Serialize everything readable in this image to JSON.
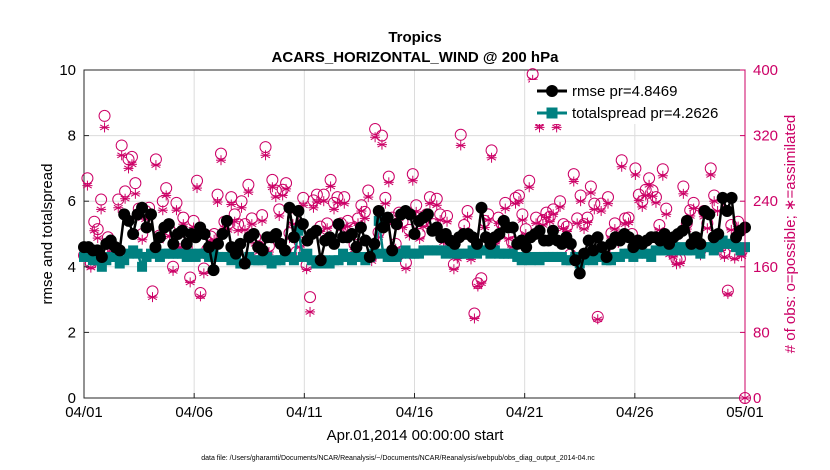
{
  "chart_data": {
    "type": "line",
    "title": "Tropics",
    "subtitle": "ACARS_HORIZONTAL_WIND @ 200 hPa",
    "xlabel": "Apr.01,2014 00:00:00 start",
    "ylabel_left": "rmse and totalspread",
    "ylabel_right": "# of obs: o=possible; ∗=assimilated",
    "footer": "data file: /Users/gharamti/Documents/NCAR/Reanalysis/~/Documents/NCAR/Reanalysis/webpub/obs_diag_output_2014-04.nc",
    "x_ticks": [
      "04/01",
      "04/06",
      "04/11",
      "04/16",
      "04/21",
      "04/26",
      "05/01"
    ],
    "x_tick_days": [
      0,
      5,
      10,
      15,
      20,
      25,
      30
    ],
    "xlim_days": [
      0,
      30
    ],
    "ylim_left": [
      0,
      10
    ],
    "y_ticks_left": [
      "0",
      "2",
      "4",
      "6",
      "8",
      "10"
    ],
    "ylim_right": [
      0,
      400
    ],
    "y_ticks_right": [
      "0",
      "80",
      "160",
      "240",
      "320",
      "400"
    ],
    "grid": true,
    "legend_position": "top-right",
    "colors": {
      "rmse": "#000000",
      "totalspread": "#008080",
      "obs": "#cc0066"
    },
    "series": [
      {
        "name": "rmse pr=4.8469",
        "axis": "left",
        "marker": "circle",
        "values": [
          4.6,
          4.6,
          4.5,
          4.5,
          4.3,
          4.7,
          4.8,
          4.6,
          4.5,
          5.6,
          5.4,
          5.0,
          5.6,
          5.8,
          5.2,
          5.6,
          4.6,
          4.9,
          5.2,
          5.3,
          4.7,
          5.0,
          5.1,
          4.7,
          5.0,
          4.9,
          5.2,
          5.0,
          4.6,
          3.9,
          4.7,
          5.0,
          5.4,
          4.6,
          4.4,
          4.7,
          4.1,
          4.9,
          5.0,
          4.6,
          4.5,
          4.9,
          4.9,
          5.0,
          4.7,
          4.5,
          5.8,
          4.9,
          5.7,
          5.3,
          4.8,
          5.0,
          5.1,
          4.2,
          4.8,
          4.9,
          4.7,
          5.3,
          4.9,
          4.9,
          5.0,
          4.6,
          5.2,
          4.8,
          4.3,
          4.7,
          5.7,
          5.2,
          5.5,
          4.5,
          5.3,
          5.6,
          5.7,
          5.6,
          5.0,
          5.4,
          5.5,
          5.6,
          5.1,
          5.2,
          4.9,
          5.0,
          4.8,
          4.7,
          4.9,
          5.0,
          5.0,
          4.9,
          4.7,
          5.8,
          4.9,
          4.7,
          4.9,
          5.0,
          5.4,
          5.2,
          5.2,
          4.7,
          4.8,
          4.6,
          4.9,
          5.0,
          5.1,
          4.8,
          4.8,
          5.1,
          4.8,
          4.7,
          4.9,
          4.7,
          4.2,
          3.8,
          4.4,
          4.8,
          4.5,
          4.9,
          4.6,
          4.3,
          4.7,
          4.9,
          4.8,
          5.0,
          4.9,
          4.6,
          4.8,
          4.7,
          4.8,
          4.9,
          4.9,
          4.8,
          5.0,
          4.7,
          4.9,
          5.0,
          5.1,
          5.4,
          4.7,
          4.9,
          4.7,
          5.7,
          5.6,
          4.9,
          5.0,
          6.1,
          5.7,
          6.1,
          4.9,
          5.1,
          5.2
        ]
      },
      {
        "name": "totalspread pr=4.2626",
        "axis": "left",
        "marker": "square",
        "values": [
          4.3,
          4.3,
          4.2,
          4.2,
          4.0,
          4.2,
          4.3,
          4.3,
          4.1,
          4.2,
          4.4,
          4.5,
          4.4,
          4.0,
          4.3,
          4.4,
          4.4,
          4.3,
          4.4,
          4.4,
          4.4,
          4.4,
          4.4,
          4.3,
          4.4,
          4.3,
          4.4,
          4.4,
          4.3,
          4.4,
          4.3,
          4.3,
          4.3,
          4.2,
          4.3,
          4.1,
          4.1,
          4.3,
          4.2,
          4.2,
          4.2,
          4.3,
          4.1,
          4.2,
          4.2,
          4.3,
          4.3,
          4.2,
          5.1,
          4.3,
          4.4,
          4.2,
          4.1,
          4.1,
          4.2,
          4.1,
          4.2,
          4.2,
          4.4,
          4.3,
          4.2,
          4.3,
          4.3,
          4.2,
          4.3,
          4.4,
          5.4,
          4.4,
          4.3,
          4.3,
          4.3,
          4.4,
          4.5,
          4.4,
          4.4,
          4.4,
          4.5,
          4.5,
          4.5,
          4.5,
          4.5,
          4.4,
          4.5,
          4.4,
          4.4,
          4.4,
          4.4,
          4.5,
          4.4,
          4.5,
          4.5,
          4.4,
          4.5,
          4.4,
          4.4,
          4.4,
          4.4,
          4.3,
          4.2,
          4.3,
          4.2,
          4.3,
          4.2,
          4.3,
          4.3,
          4.3,
          4.3,
          4.3,
          4.2,
          4.2,
          4.3,
          4.1,
          4.2,
          4.3,
          4.2,
          4.3,
          4.3,
          4.2,
          4.2,
          4.3,
          4.3,
          4.4,
          4.4,
          4.3,
          4.4,
          4.4,
          4.4,
          4.3,
          4.5,
          4.5,
          4.5,
          4.5,
          4.6,
          4.5,
          4.6,
          4.5,
          4.5,
          4.6,
          4.4,
          4.6,
          4.6,
          4.5,
          4.6,
          4.8,
          4.7,
          4.7,
          4.6,
          4.5,
          4.6
        ]
      },
      {
        "name": "possible",
        "axis": "right",
        "marker": "open-circle",
        "values": [
          174,
          268,
          164,
          215,
          206,
          242,
          344,
          196,
          185,
          181,
          242,
          308,
          252,
          291,
          294,
          262,
          231,
          200,
          228,
          232,
          130,
          291,
          198,
          240,
          256,
          205,
          160,
          238,
          191,
          220,
          184,
          147,
          216,
          265,
          128,
          158,
          181,
          197,
          200,
          248,
          298,
          215,
          212,
          245,
          224,
          212,
          240,
          212,
          260,
          219,
          196,
          185,
          223,
          306,
          185,
          266,
          253,
          230,
          254,
          262,
          201,
          219,
          178,
          190,
          244,
          162,
          123,
          241,
          248,
          209,
          248,
          213,
          266,
          238,
          245,
          213,
          245,
          216,
          207,
          187,
          219,
          235,
          227,
          253,
          173,
          328,
          202,
          320,
          244,
          270,
          220,
          188,
          226,
          215,
          165,
          205,
          273,
          235,
          200,
          215,
          224,
          245,
          212,
          243,
          224,
          196,
          222,
          188,
          163,
          175,
          321,
          211,
          228,
          176,
          103,
          140,
          146,
          216,
          224,
          302,
          194,
          220,
          212,
          238,
          200,
          190,
          244,
          247,
          224,
          206,
          265,
          395,
          220,
          339,
          217,
          226,
          221,
          230,
          340,
          240,
          212,
          209,
          175,
          273,
          219,
          247,
          212,
          220,
          258,
          237,
          99,
          237,
          180,
          245,
          201,
          213,
          195,
          290,
          219,
          220,
          200,
          280,
          248,
          240,
          254,
          268,
          253,
          245,
          211,
          279,
          231,
          181,
          178,
          169,
          170,
          258,
          213,
          229,
          238,
          183,
          180,
          228,
          213,
          280,
          247,
          235,
          185,
          177,
          131,
          211,
          175,
          215,
          179,
          0
        ]
      },
      {
        "name": "assimilated",
        "axis": "right",
        "marker": "asterisk",
        "values": [
          171,
          259,
          159,
          204,
          195,
          230,
          330,
          188,
          176,
          172,
          232,
          296,
          243,
          280,
          285,
          249,
          222,
          193,
          218,
          220,
          123,
          284,
          192,
          229,
          247,
          197,
          155,
          229,
          183,
          212,
          176,
          141,
          208,
          256,
          124,
          152,
          173,
          191,
          193,
          239,
          290,
          207,
          205,
          236,
          215,
          204,
          232,
          205,
          251,
          212,
          188,
          178,
          216,
          296,
          178,
          257,
          245,
          222,
          247,
          255,
          195,
          212,
          172,
          184,
          235,
          157,
          105,
          232,
          239,
          203,
          240,
          207,
          258,
          230,
          238,
          206,
          237,
          209,
          200,
          181,
          213,
          228,
          219,
          245,
          167,
          318,
          196,
          309,
          237,
          263,
          213,
          182,
          219,
          208,
          158,
          198,
          265,
          227,
          194,
          209,
          217,
          237,
          206,
          235,
          217,
          190,
          215,
          183,
          157,
          170,
          308,
          205,
          221,
          169,
          97,
          136,
          140,
          208,
          217,
          293,
          188,
          213,
          206,
          231,
          194,
          184,
          237,
          240,
          217,
          200,
          257,
          388,
          213,
          330,
          211,
          220,
          215,
          224,
          330,
          233,
          207,
          203,
          169,
          264,
          213,
          240,
          206,
          214,
          250,
          230,
          96,
          228,
          174,
          237,
          195,
          206,
          189,
          282,
          212,
          214,
          194,
          272,
          241,
          233,
          247,
          260,
          246,
          238,
          205,
          271,
          224,
          175,
          172,
          163,
          164,
          249,
          206,
          222,
          231,
          178,
          174,
          221,
          207,
          272,
          240,
          228,
          180,
          172,
          127,
          205,
          170,
          209,
          173,
          0
        ]
      }
    ]
  }
}
